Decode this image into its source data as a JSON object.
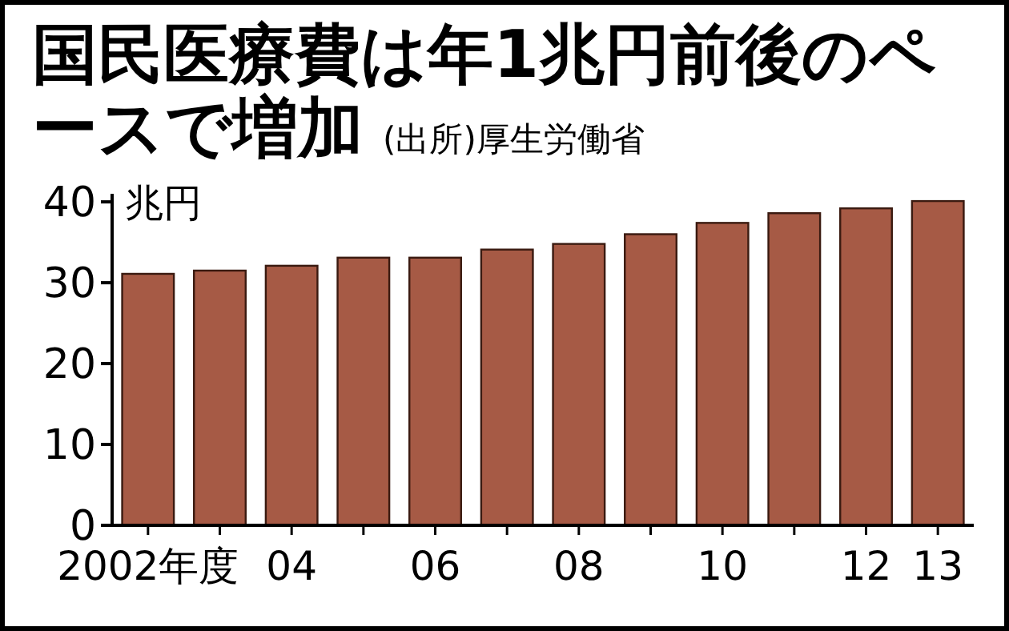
{
  "chart_data": {
    "type": "bar",
    "title": "国民医療費は年1兆円前後のペースで増加",
    "annotations": [
      "(出所)厚生労働省"
    ],
    "ylabel": "兆円",
    "categories": [
      "2002年度",
      null,
      "04",
      null,
      "06",
      null,
      "08",
      null,
      "10",
      null,
      "12",
      "13"
    ],
    "values": [
      31.1,
      31.5,
      32.1,
      33.1,
      33.1,
      34.1,
      34.8,
      36.0,
      37.4,
      38.6,
      39.2,
      40.1
    ],
    "color": "#a65a45",
    "ylim": [
      0,
      41
    ],
    "yticks": [
      0,
      10,
      20,
      30,
      40
    ],
    "grid": false
  }
}
